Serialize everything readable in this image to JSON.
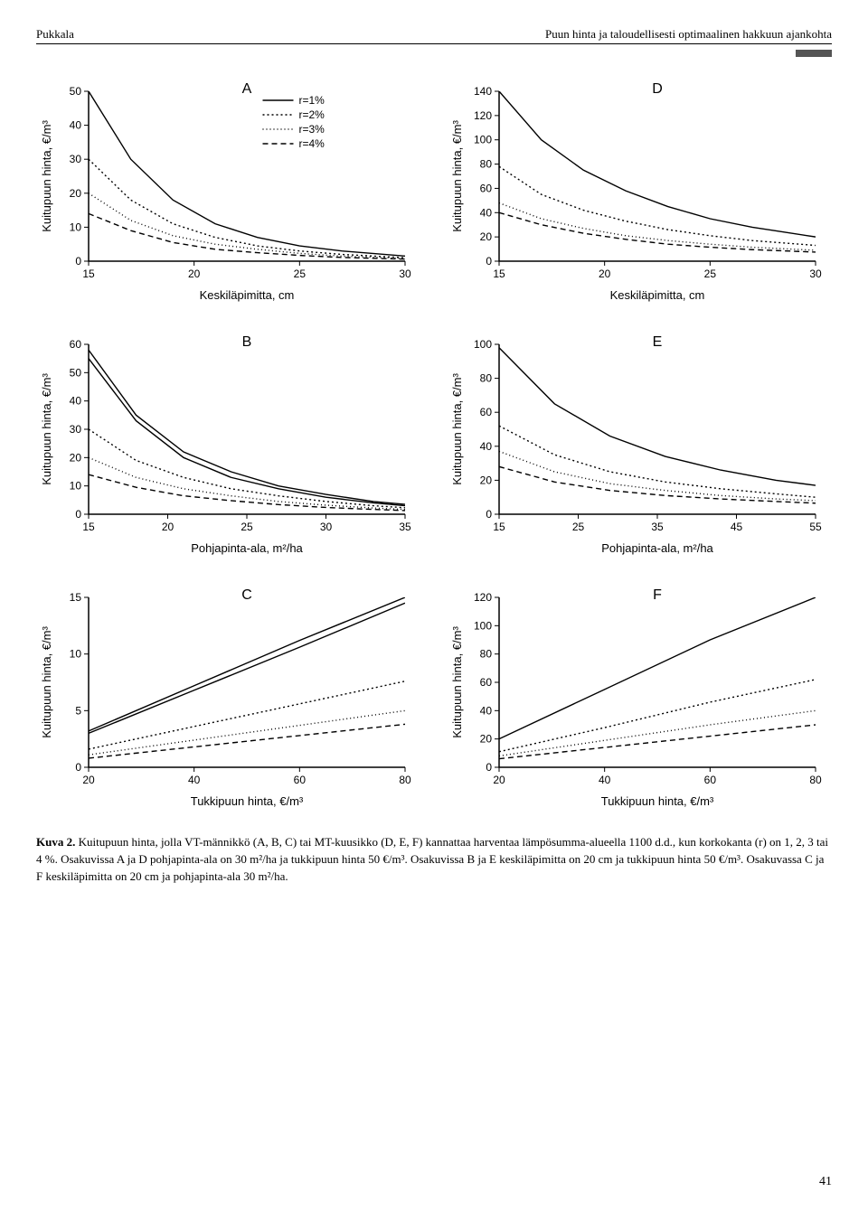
{
  "header": {
    "left": "Pukkala",
    "right": "Puun hinta ja taloudellisesti optimaalinen hakkuun ajankohta"
  },
  "legend": {
    "items": [
      {
        "label": "r=1%",
        "dash": ""
      },
      {
        "label": "r=2%",
        "dash": "2 3"
      },
      {
        "label": "r=3%",
        "dash": "1 3"
      },
      {
        "label": "r=4%",
        "dash": "6 4"
      }
    ]
  },
  "line_color": "#000000",
  "axis_color": "#000000",
  "line_width": 1.4,
  "panels": {
    "A": {
      "letter": "A",
      "xlabel": "Keskiläpimitta, cm",
      "ylabel": "Kuitupuun hinta, €/m³",
      "xlim": [
        15,
        30
      ],
      "xticks": [
        15,
        20,
        25,
        30
      ],
      "ylim": [
        0,
        50
      ],
      "yticks": [
        0,
        10,
        20,
        30,
        40,
        50
      ],
      "series": [
        {
          "dash": "",
          "pts": [
            [
              15,
              50
            ],
            [
              17,
              30
            ],
            [
              19,
              18
            ],
            [
              21,
              11
            ],
            [
              23,
              7
            ],
            [
              25,
              4.5
            ],
            [
              27,
              3
            ],
            [
              30,
              1.5
            ]
          ]
        },
        {
          "dash": "2 3",
          "pts": [
            [
              15,
              30
            ],
            [
              17,
              18
            ],
            [
              19,
              11
            ],
            [
              21,
              7
            ],
            [
              23,
              4.5
            ],
            [
              25,
              3
            ],
            [
              27,
              2
            ],
            [
              30,
              1
            ]
          ]
        },
        {
          "dash": "1 3",
          "pts": [
            [
              15,
              20
            ],
            [
              17,
              12
            ],
            [
              19,
              7.5
            ],
            [
              21,
              5
            ],
            [
              23,
              3.5
            ],
            [
              25,
              2.3
            ],
            [
              27,
              1.5
            ],
            [
              30,
              0.8
            ]
          ]
        },
        {
          "dash": "6 4",
          "pts": [
            [
              15,
              14
            ],
            [
              17,
              9
            ],
            [
              19,
              5.5
            ],
            [
              21,
              3.5
            ],
            [
              23,
              2.5
            ],
            [
              25,
              1.7
            ],
            [
              27,
              1.1
            ],
            [
              30,
              0.6
            ]
          ]
        }
      ]
    },
    "B": {
      "letter": "B",
      "xlabel": "Pohjapinta-ala, m²/ha",
      "ylabel": "Kuitupuun hinta, €/m³",
      "xlim": [
        15,
        35
      ],
      "xticks": [
        15,
        20,
        25,
        30,
        35
      ],
      "ylim": [
        0,
        60
      ],
      "yticks": [
        0,
        10,
        20,
        30,
        40,
        50,
        60
      ],
      "series": [
        {
          "dash": "",
          "pts": [
            [
              15,
              58
            ],
            [
              18,
              35
            ],
            [
              21,
              22
            ],
            [
              24,
              15
            ],
            [
              27,
              10
            ],
            [
              30,
              7
            ],
            [
              33,
              4.5
            ],
            [
              35,
              3.5
            ]
          ]
        },
        {
          "dash": "",
          "pts": [
            [
              15,
              55
            ],
            [
              18,
              33
            ],
            [
              21,
              20
            ],
            [
              24,
              13
            ],
            [
              27,
              9
            ],
            [
              30,
              6
            ],
            [
              33,
              4
            ],
            [
              35,
              3
            ]
          ]
        },
        {
          "dash": "2 3",
          "pts": [
            [
              15,
              30
            ],
            [
              18,
              19
            ],
            [
              21,
              13
            ],
            [
              24,
              9
            ],
            [
              27,
              6.5
            ],
            [
              30,
              4.5
            ],
            [
              33,
              3
            ],
            [
              35,
              2.3
            ]
          ]
        },
        {
          "dash": "1 3",
          "pts": [
            [
              15,
              20
            ],
            [
              18,
              13
            ],
            [
              21,
              9
            ],
            [
              24,
              6.5
            ],
            [
              27,
              4.5
            ],
            [
              30,
              3.2
            ],
            [
              33,
              2.2
            ],
            [
              35,
              1.7
            ]
          ]
        },
        {
          "dash": "6 4",
          "pts": [
            [
              15,
              14
            ],
            [
              18,
              9.5
            ],
            [
              21,
              6.5
            ],
            [
              24,
              4.8
            ],
            [
              27,
              3.4
            ],
            [
              30,
              2.4
            ],
            [
              33,
              1.7
            ],
            [
              35,
              1.3
            ]
          ]
        }
      ]
    },
    "C": {
      "letter": "C",
      "xlabel": "Tukkipuun hinta, €/m³",
      "ylabel": "Kuitupuun hinta, €/m³",
      "xlim": [
        20,
        80
      ],
      "xticks": [
        20,
        40,
        60,
        80
      ],
      "ylim": [
        0,
        15
      ],
      "yticks": [
        0,
        5,
        10,
        15
      ],
      "series": [
        {
          "dash": "",
          "pts": [
            [
              20,
              3.2
            ],
            [
              40,
              7.2
            ],
            [
              60,
              11.2
            ],
            [
              80,
              15
            ]
          ]
        },
        {
          "dash": "",
          "pts": [
            [
              20,
              3.0
            ],
            [
              40,
              6.8
            ],
            [
              60,
              10.6
            ],
            [
              80,
              14.5
            ]
          ]
        },
        {
          "dash": "2 3",
          "pts": [
            [
              20,
              1.6
            ],
            [
              40,
              3.6
            ],
            [
              60,
              5.6
            ],
            [
              80,
              7.6
            ]
          ]
        },
        {
          "dash": "1 3",
          "pts": [
            [
              20,
              1.1
            ],
            [
              40,
              2.4
            ],
            [
              60,
              3.7
            ],
            [
              80,
              5.0
            ]
          ]
        },
        {
          "dash": "6 4",
          "pts": [
            [
              20,
              0.8
            ],
            [
              40,
              1.8
            ],
            [
              60,
              2.8
            ],
            [
              80,
              3.8
            ]
          ]
        }
      ]
    },
    "D": {
      "letter": "D",
      "xlabel": "Keskiläpimitta, cm",
      "ylabel": "Kuitupuun hinta, €/m³",
      "xlim": [
        15,
        30
      ],
      "xticks": [
        15,
        20,
        25,
        30
      ],
      "ylim": [
        0,
        140
      ],
      "yticks": [
        0,
        20,
        40,
        60,
        80,
        100,
        120,
        140
      ],
      "series": [
        {
          "dash": "",
          "pts": [
            [
              15,
              140
            ],
            [
              17,
              100
            ],
            [
              19,
              75
            ],
            [
              21,
              58
            ],
            [
              23,
              45
            ],
            [
              25,
              35
            ],
            [
              27,
              28
            ],
            [
              30,
              20
            ]
          ]
        },
        {
          "dash": "2 3",
          "pts": [
            [
              15,
              78
            ],
            [
              17,
              55
            ],
            [
              19,
              42
            ],
            [
              21,
              33
            ],
            [
              23,
              26
            ],
            [
              25,
              21
            ],
            [
              27,
              17
            ],
            [
              30,
              13
            ]
          ]
        },
        {
          "dash": "1 3",
          "pts": [
            [
              15,
              48
            ],
            [
              17,
              35
            ],
            [
              19,
              27
            ],
            [
              21,
              21
            ],
            [
              23,
              17
            ],
            [
              25,
              14
            ],
            [
              27,
              11.5
            ],
            [
              30,
              9
            ]
          ]
        },
        {
          "dash": "6 4",
          "pts": [
            [
              15,
              40
            ],
            [
              17,
              30
            ],
            [
              19,
              23
            ],
            [
              21,
              18
            ],
            [
              23,
              14
            ],
            [
              25,
              11.5
            ],
            [
              27,
              9.5
            ],
            [
              30,
              7.5
            ]
          ]
        }
      ]
    },
    "E": {
      "letter": "E",
      "xlabel": "Pohjapinta-ala, m²/ha",
      "ylabel": "Kuitupuun hinta, €/m³",
      "xlim": [
        15,
        55
      ],
      "xticks": [
        15,
        25,
        35,
        45,
        55
      ],
      "ylim": [
        0,
        100
      ],
      "yticks": [
        0,
        20,
        40,
        60,
        80,
        100
      ],
      "series": [
        {
          "dash": "",
          "pts": [
            [
              15,
              98
            ],
            [
              22,
              65
            ],
            [
              29,
              46
            ],
            [
              36,
              34
            ],
            [
              43,
              26
            ],
            [
              50,
              20
            ],
            [
              55,
              17
            ]
          ]
        },
        {
          "dash": "2 3",
          "pts": [
            [
              15,
              52
            ],
            [
              22,
              35
            ],
            [
              29,
              25
            ],
            [
              36,
              19
            ],
            [
              43,
              15
            ],
            [
              50,
              12
            ],
            [
              55,
              10
            ]
          ]
        },
        {
          "dash": "1 3",
          "pts": [
            [
              15,
              37
            ],
            [
              22,
              25
            ],
            [
              29,
              18
            ],
            [
              36,
              14
            ],
            [
              43,
              11
            ],
            [
              50,
              9
            ],
            [
              55,
              8
            ]
          ]
        },
        {
          "dash": "6 4",
          "pts": [
            [
              15,
              28
            ],
            [
              22,
              19
            ],
            [
              29,
              14
            ],
            [
              36,
              11
            ],
            [
              43,
              9
            ],
            [
              50,
              7.5
            ],
            [
              55,
              6.5
            ]
          ]
        }
      ]
    },
    "F": {
      "letter": "F",
      "xlabel": "Tukkipuun hinta, €/m³",
      "ylabel": "Kuitupuun hinta, €/m³",
      "xlim": [
        20,
        80
      ],
      "xticks": [
        20,
        40,
        60,
        80
      ],
      "ylim": [
        0,
        120
      ],
      "yticks": [
        0,
        20,
        40,
        60,
        80,
        100,
        120
      ],
      "series": [
        {
          "dash": "",
          "pts": [
            [
              20,
              20
            ],
            [
              40,
              55
            ],
            [
              60,
              90
            ],
            [
              80,
              120
            ]
          ]
        },
        {
          "dash": "2 3",
          "pts": [
            [
              20,
              11
            ],
            [
              40,
              28
            ],
            [
              60,
              46
            ],
            [
              80,
              62
            ]
          ]
        },
        {
          "dash": "1 3",
          "pts": [
            [
              20,
              8
            ],
            [
              40,
              19
            ],
            [
              60,
              30
            ],
            [
              80,
              40
            ]
          ]
        },
        {
          "dash": "6 4",
          "pts": [
            [
              20,
              6
            ],
            [
              40,
              14
            ],
            [
              60,
              22
            ],
            [
              80,
              30
            ]
          ]
        }
      ]
    }
  },
  "caption": {
    "lead": "Kuva 2.",
    "text": " Kuitupuun hinta, jolla VT-männikkö (A, B, C) tai MT-kuusikko (D, E, F) kannattaa harventaa lämpösumma-alueella 1100 d.d., kun korkokanta (r) on 1, 2, 3 tai 4 %. Osakuvissa A ja D pohjapinta-ala on 30 m²/ha ja tukkipuun hinta 50 €/m³. Osakuvissa B ja E keskiläpimitta on 20 cm ja tukkipuun hinta 50 €/m³. Osakuvassa C ja F keskiläpimitta on 20 cm ja pohjapinta-ala 30 m²/ha."
  },
  "page_number": "41"
}
